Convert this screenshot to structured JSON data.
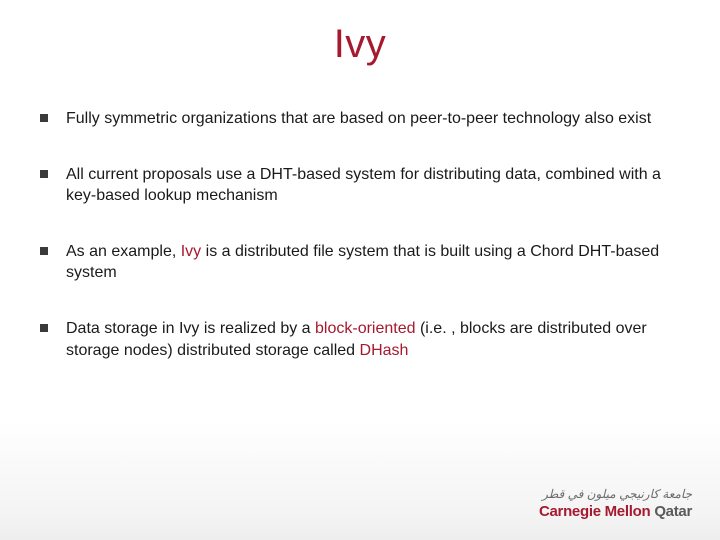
{
  "colors": {
    "accent": "#a6192e",
    "text": "#1a1a1a",
    "bullet_marker": "#3a3a3a",
    "logo_secondary": "#5a5a5a",
    "arabic_text": "#6b6b6b",
    "background_top": "#ffffff",
    "background_bottom": "#eeeeee"
  },
  "typography": {
    "title_fontsize": 40,
    "body_fontsize": 16,
    "logo_fontsize": 15,
    "arabic_fontsize": 12,
    "font_family": "Arial"
  },
  "title": "Ivy",
  "bullets": [
    {
      "segments": [
        {
          "text": "Fully symmetric organizations that are based on peer-to-peer technology also exist",
          "kw": false
        }
      ]
    },
    {
      "segments": [
        {
          "text": "All current proposals use a DHT-based system for distributing data, combined with a key-based lookup mechanism",
          "kw": false
        }
      ]
    },
    {
      "segments": [
        {
          "text": "As an example, ",
          "kw": false
        },
        {
          "text": "Ivy",
          "kw": true
        },
        {
          "text": " is a distributed file system that is built using a Chord DHT-based system",
          "kw": false
        }
      ]
    },
    {
      "segments": [
        {
          "text": "Data storage in Ivy is realized by a ",
          "kw": false
        },
        {
          "text": "block-oriented",
          "kw": true
        },
        {
          "text": " (i.e. , blocks are distributed over storage nodes) distributed storage called ",
          "kw": false
        },
        {
          "text": "DHash",
          "kw": true
        }
      ]
    }
  ],
  "logo": {
    "arabic": "جامعة كارنيجي ميلون في قطر",
    "line1": "Carnegie Mellon",
    "line2": "Qatar"
  }
}
